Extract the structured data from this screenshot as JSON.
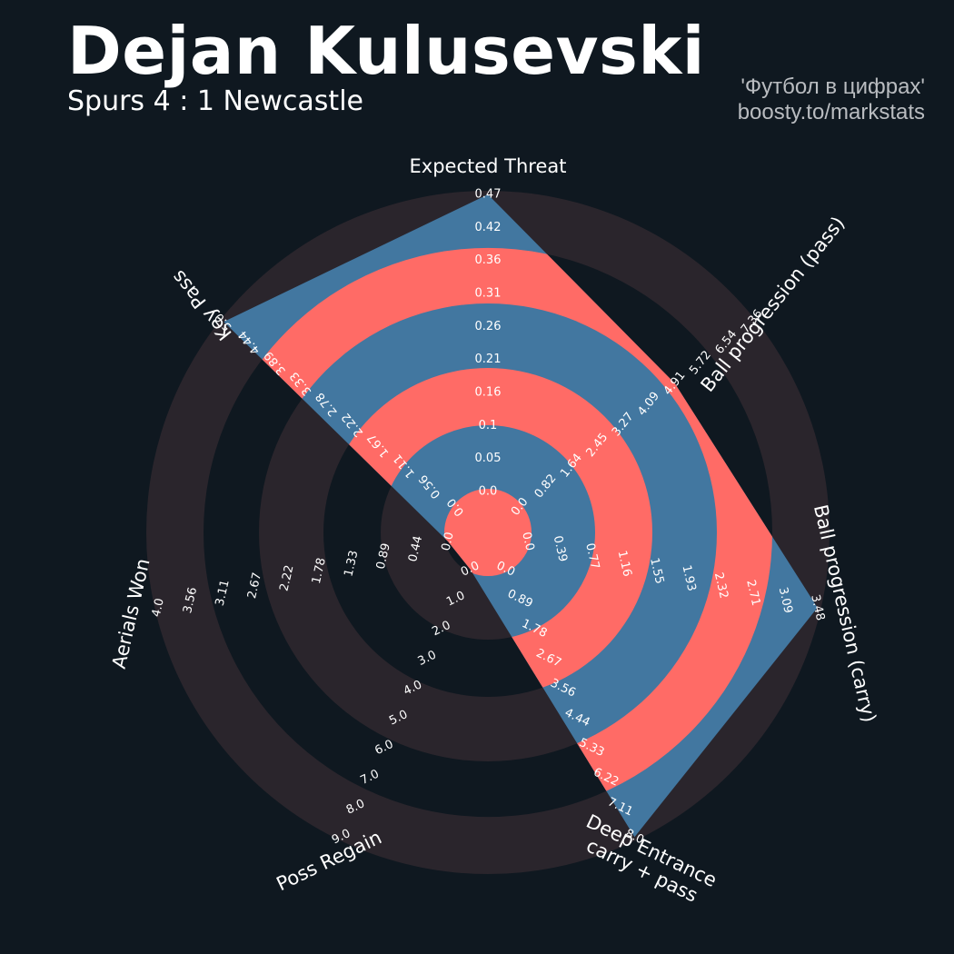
{
  "title": "Dejan Kulusevski",
  "subtitle": "Spurs 4 : 1 Newcastle",
  "credit": {
    "line1": "'Футбол в цифрах'",
    "line2": "boosty.to/markstats"
  },
  "colors": {
    "background": "#0f1820",
    "ring_dark": "#2a252c",
    "polygon": "#4277a0",
    "polygon_ring": "#ff6b66",
    "text": "#ffffff",
    "credit": "#b9bcc0"
  },
  "chart_data": {
    "type": "radar",
    "title": "Dejan Kulusevski",
    "subtitle": "Spurs 4 : 1 Newcastle",
    "axes": [
      {
        "label": "Expected Threat",
        "value": 0.47,
        "min": 0,
        "max": 0.47,
        "ticks": [
          "0.0",
          "0.05",
          "0.1",
          "0.16",
          "0.21",
          "0.26",
          "0.31",
          "0.36",
          "0.42",
          "0.47"
        ]
      },
      {
        "label": "Ball progression (pass)",
        "value": 4.91,
        "min": 0,
        "max": 7.36,
        "ticks": [
          "0.0",
          "0.82",
          "1.64",
          "2.45",
          "3.27",
          "4.09",
          "4.91",
          "5.72",
          "6.54",
          "7.36"
        ]
      },
      {
        "label": "Ball progression (carry)",
        "value": 3.48,
        "min": 0,
        "max": 3.48,
        "ticks": [
          "0.0",
          "0.39",
          "0.77",
          "1.16",
          "1.55",
          "1.93",
          "2.32",
          "2.71",
          "3.09",
          "3.48"
        ]
      },
      {
        "label": "Deep Entrance\ncarry + pass",
        "value": 8.0,
        "min": 0,
        "max": 8.0,
        "ticks": [
          "0.0",
          "0.89",
          "1.78",
          "2.67",
          "3.56",
          "4.44",
          "5.33",
          "6.22",
          "7.11",
          "8.0"
        ]
      },
      {
        "label": "Poss Regain",
        "value": 0.0,
        "min": 0,
        "max": 9.0,
        "ticks": [
          "0.0",
          "1.0",
          "2.0",
          "3.0",
          "4.0",
          "5.0",
          "6.0",
          "7.0",
          "8.0",
          "9.0"
        ]
      },
      {
        "label": "Aerials Won",
        "value": 0.0,
        "min": 0,
        "max": 4.0,
        "ticks": [
          "0.0",
          "0.44",
          "0.89",
          "1.33",
          "1.78",
          "2.22",
          "2.67",
          "3.11",
          "3.56",
          "4.0"
        ]
      },
      {
        "label": "Key Pass",
        "value": 5.0,
        "min": 0,
        "max": 5.0,
        "ticks": [
          "0.0",
          "0.56",
          "1.11",
          "1.67",
          "2.22",
          "2.78",
          "3.33",
          "3.89",
          "4.44",
          "5.0"
        ]
      }
    ]
  }
}
